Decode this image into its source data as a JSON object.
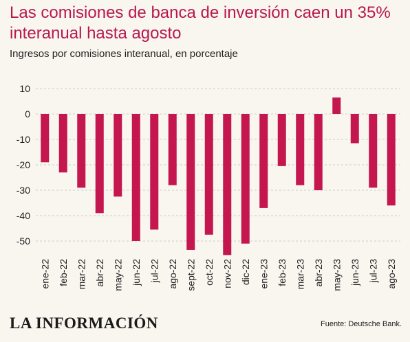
{
  "header": {
    "title": "Las comisiones de banca de inversión caen un 35% interanual hasta agosto",
    "subtitle": "Ingresos por comisiones interanual, en porcentaje"
  },
  "footer": {
    "logo_text": "LA INFORMACIÓN",
    "source": "Fuente: Deutsche Bank."
  },
  "colors": {
    "bar": "#c4164f",
    "title": "#b8184e",
    "background": "#f9f5ef",
    "grid": "#d0ccc6"
  },
  "chart_data": {
    "type": "bar",
    "categories": [
      "ene-22",
      "feb-22",
      "mar-22",
      "abr-22",
      "may-22",
      "jun-22",
      "jul-22",
      "ago-22",
      "sept-22",
      "oct-22",
      "nov-22",
      "dic-22",
      "ene-23",
      "feb-23",
      "mar-23",
      "abr-23",
      "may-23",
      "jun-23",
      "jul-23",
      "ago-23"
    ],
    "values": [
      -19,
      -23,
      -29,
      -39,
      -32.5,
      -50,
      -45.5,
      -28,
      -53.5,
      -47.5,
      -55.5,
      -51,
      -37,
      -20.5,
      -28,
      -30,
      6.5,
      -11.5,
      -29,
      -36
    ],
    "title": "Las comisiones de banca de inversión caen un 35% interanual hasta agosto",
    "subtitle": "Ingresos por comisiones interanual, en porcentaje",
    "yticks": [
      10,
      0,
      -10,
      -20,
      -30,
      -40,
      -50
    ],
    "ylim": [
      -55.5,
      10
    ],
    "grid": true,
    "legend": "none"
  }
}
